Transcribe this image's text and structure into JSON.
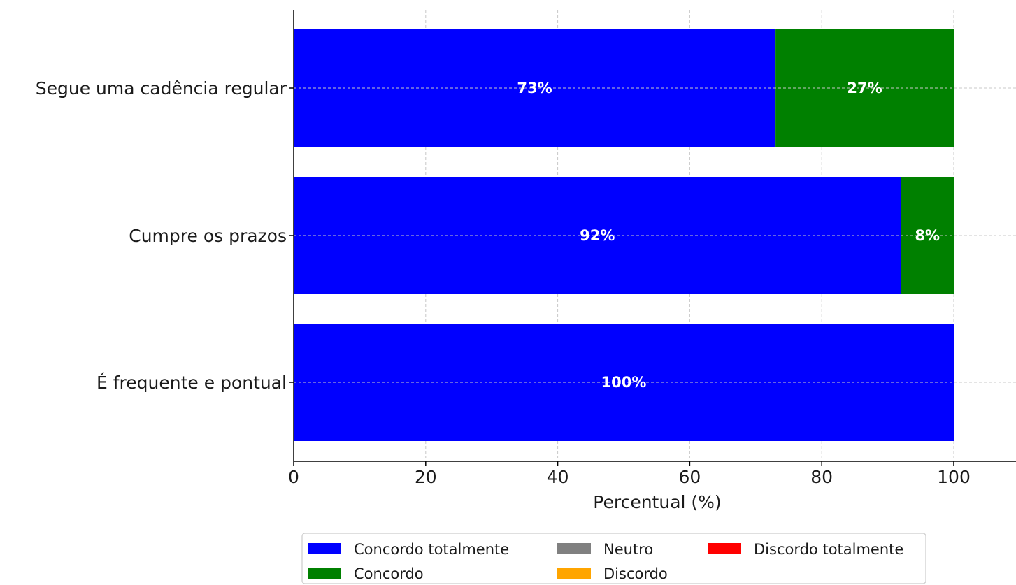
{
  "chart_data": {
    "type": "bar",
    "orientation": "horizontal",
    "stacked": true,
    "title": "",
    "xlabel": "Percentual (%)",
    "ylabel": "",
    "xlim": [
      0,
      110
    ],
    "xticks": [
      0,
      20,
      40,
      60,
      80,
      100
    ],
    "grid": true,
    "categories": [
      "Segue uma cadência regular",
      "Cumpre os prazos",
      "É frequente e pontual"
    ],
    "series": [
      {
        "name": "Concordo totalmente",
        "color": "#0000ff",
        "values": [
          73,
          92,
          100
        ],
        "labels": [
          "73%",
          "92%",
          "100%"
        ]
      },
      {
        "name": "Concordo",
        "color": "#008000",
        "values": [
          27,
          8,
          0
        ],
        "labels": [
          "27%",
          "8%",
          ""
        ]
      },
      {
        "name": "Neutro",
        "color": "#808080",
        "values": [
          0,
          0,
          0
        ],
        "labels": [
          "",
          "",
          ""
        ]
      },
      {
        "name": "Discordo",
        "color": "#ffa500",
        "values": [
          0,
          0,
          0
        ],
        "labels": [
          "",
          "",
          ""
        ]
      },
      {
        "name": "Discordo totalmente",
        "color": "#ff0000",
        "values": [
          0,
          0,
          0
        ],
        "labels": [
          "",
          "",
          ""
        ]
      }
    ],
    "legend": {
      "placement": "bottom-center",
      "columns": 3,
      "order": [
        "Concordo totalmente",
        "Concordo",
        "Neutro",
        "Discordo",
        "Discordo totalmente"
      ]
    }
  }
}
